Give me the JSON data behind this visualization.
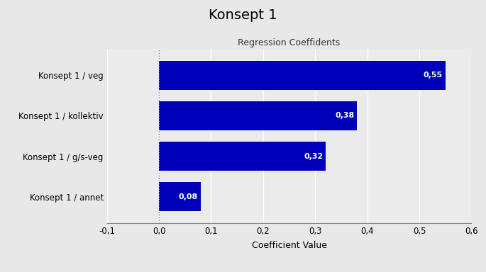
{
  "title": "Konsept 1",
  "subtitle": "Regression Coeffidents",
  "categories": [
    "Konsept 1 / veg",
    "Konsept 1 / kollektiv",
    "Konsept 1 / g/s-veg",
    "Konsept 1 / annet"
  ],
  "values": [
    0.55,
    0.38,
    0.32,
    0.08
  ],
  "bar_color": "#0000BB",
  "label_color": "#FFFFFF",
  "xlabel": "Coefficient Value",
  "xlim": [
    -0.1,
    0.6
  ],
  "xticks": [
    -0.1,
    0.0,
    0.1,
    0.2,
    0.3,
    0.4,
    0.5,
    0.6
  ],
  "xtick_labels": [
    "-0,1",
    "0,0",
    "0,1",
    "0,2",
    "0,3",
    "0,4",
    "0,5",
    "0,6"
  ],
  "background_color": "#E8E8E8",
  "plot_bg_color": "#EBEBEB",
  "grid_color": "#FFFFFF",
  "vline_x": 0.0,
  "vline_color": "#7777CC",
  "title_fontsize": 14,
  "subtitle_fontsize": 9,
  "label_fontsize": 8,
  "xlabel_fontsize": 9,
  "ytick_fontsize": 8.5,
  "xtick_fontsize": 8.5,
  "bar_height": 0.72
}
